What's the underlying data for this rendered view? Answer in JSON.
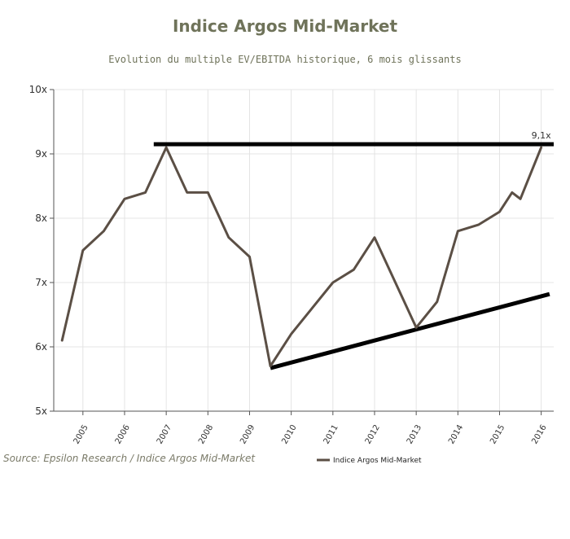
{
  "title": "Indice Argos Mid-Market",
  "subtitle": "Evolution du multiple EV/EBITDA historique, 6 mois glissants",
  "source": "Source: Epsilon Research / Indice Argos Mid-Market",
  "chart_data": {
    "type": "line",
    "title": "Indice Argos Mid-Market",
    "subtitle": "Evolution du multiple EV/EBITDA historique, 6 mois glissants",
    "xlabel": "",
    "ylabel": "",
    "ylim": [
      5,
      10
    ],
    "xlim": [
      2004.3,
      2016.3
    ],
    "yticks": [
      "5x",
      "6x",
      "7x",
      "8x",
      "9x",
      "10x"
    ],
    "xticks": [
      "2005",
      "2006",
      "2007",
      "2008",
      "2009",
      "2010",
      "2011",
      "2012",
      "2013",
      "2014",
      "2015",
      "2016"
    ],
    "grid": true,
    "legend": "bottom",
    "colors": {
      "series": "#5b4f45",
      "trendlines": "#000000",
      "grid": "#e4e4e4"
    },
    "series": [
      {
        "name": "Indice Argos Mid-Market",
        "x": [
          2004.5,
          2005.0,
          2005.5,
          2006.0,
          2006.5,
          2007.0,
          2007.5,
          2008.0,
          2008.5,
          2009.0,
          2009.5,
          2010.0,
          2010.5,
          2011.0,
          2011.5,
          2012.0,
          2012.5,
          2013.0,
          2013.5,
          2014.0,
          2014.5,
          2015.0,
          2015.3,
          2015.5,
          2016.0
        ],
        "values": [
          6.1,
          7.5,
          7.8,
          8.3,
          8.4,
          9.1,
          8.4,
          8.4,
          7.7,
          7.4,
          5.7,
          6.2,
          6.6,
          7.0,
          7.2,
          7.7,
          7.0,
          6.3,
          6.7,
          7.8,
          7.9,
          8.1,
          8.4,
          8.3,
          9.1
        ]
      }
    ],
    "trendlines": [
      {
        "kind": "horizontal",
        "x": [
          2006.7,
          2016.3
        ],
        "y": [
          9.15,
          9.15
        ]
      },
      {
        "kind": "support",
        "x": [
          2009.5,
          2016.2
        ],
        "y": [
          5.67,
          6.82
        ]
      }
    ],
    "annotations": [
      {
        "text": "9,1x",
        "x": 2016.0,
        "y": 9.15
      }
    ]
  }
}
